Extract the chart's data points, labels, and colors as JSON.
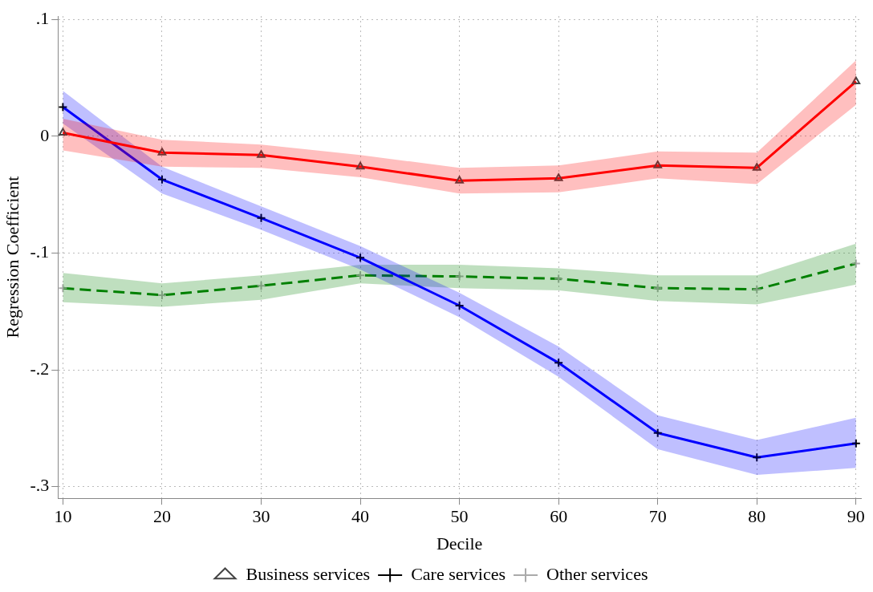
{
  "chart_data": {
    "type": "line",
    "xlabel": "Decile",
    "ylabel": "Regression Coefficient",
    "x": [
      10,
      20,
      30,
      40,
      50,
      60,
      70,
      80,
      90
    ],
    "xlim": [
      9.5,
      90.5
    ],
    "xticks": [
      10,
      20,
      30,
      40,
      50,
      60,
      70,
      80,
      90
    ],
    "ylim": [
      -0.31,
      0.103
    ],
    "yticks": [
      {
        "value": -0.3,
        "label": "-.3"
      },
      {
        "value": -0.2,
        "label": "-.2"
      },
      {
        "value": -0.1,
        "label": "-.1"
      },
      0,
      {
        "value": 0.1,
        "label": ".1"
      }
    ],
    "grid": true,
    "legend": "bottom",
    "series": [
      {
        "name": "Business services",
        "color": "#ff0000",
        "marker": "triangle",
        "line_style": "solid",
        "values": [
          0.003,
          -0.014,
          -0.016,
          -0.026,
          -0.038,
          -0.036,
          -0.025,
          -0.027,
          0.047
        ],
        "lower": [
          -0.012,
          -0.026,
          -0.027,
          -0.035,
          -0.049,
          -0.048,
          -0.036,
          -0.041,
          0.027
        ],
        "upper": [
          0.015,
          -0.003,
          -0.007,
          -0.016,
          -0.027,
          -0.025,
          -0.013,
          -0.014,
          0.065
        ]
      },
      {
        "name": "Care services",
        "color": "#0000ff",
        "marker": "cross",
        "line_style": "solid",
        "values": [
          0.025,
          -0.037,
          -0.07,
          -0.104,
          -0.145,
          -0.194,
          -0.254,
          -0.275,
          -0.263
        ],
        "lower": [
          0.011,
          -0.049,
          -0.08,
          -0.114,
          -0.155,
          -0.206,
          -0.268,
          -0.29,
          -0.284
        ],
        "upper": [
          0.039,
          -0.026,
          -0.06,
          -0.094,
          -0.134,
          -0.18,
          -0.239,
          -0.26,
          -0.241
        ]
      },
      {
        "name": "Other services",
        "color": "#008000",
        "marker": "cross",
        "line_style": "dashed",
        "values": [
          -0.13,
          -0.136,
          -0.128,
          -0.119,
          -0.12,
          -0.122,
          -0.13,
          -0.131,
          -0.109
        ],
        "lower": [
          -0.142,
          -0.146,
          -0.14,
          -0.126,
          -0.13,
          -0.132,
          -0.141,
          -0.144,
          -0.127
        ],
        "upper": [
          -0.117,
          -0.126,
          -0.119,
          -0.11,
          -0.11,
          -0.113,
          -0.119,
          -0.119,
          -0.092
        ]
      }
    ]
  }
}
